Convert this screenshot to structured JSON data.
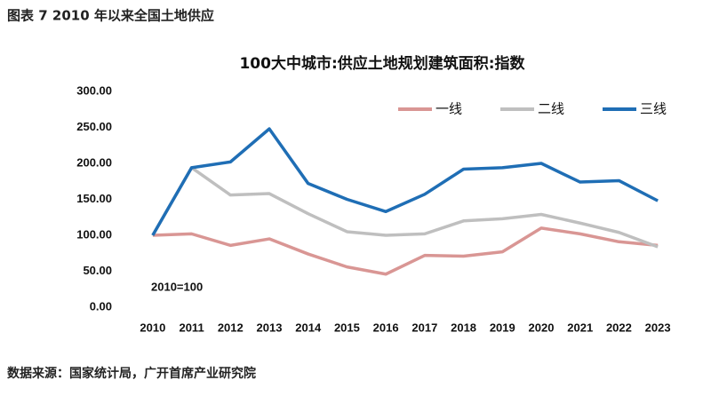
{
  "header": "图表 7 2010 年以来全国土地供应",
  "source": "数据来源：国家统计局，广开首席产业研究院",
  "chart_data": {
    "type": "line",
    "title": "100大中城市:供应土地规划建筑面积:指数",
    "annotation": "2010=100",
    "categories": [
      "2010",
      "2011",
      "2012",
      "2013",
      "2014",
      "2015",
      "2016",
      "2017",
      "2018",
      "2019",
      "2020",
      "2021",
      "2022",
      "2023"
    ],
    "series": [
      {
        "name": "一线",
        "color": "#d99694",
        "values": [
          100,
          102,
          86,
          95,
          74,
          56,
          46,
          72,
          71,
          77,
          110,
          102,
          91,
          86
        ]
      },
      {
        "name": "二线",
        "color": "#bfbfbf",
        "values": [
          100,
          194,
          156,
          158,
          130,
          105,
          100,
          102,
          120,
          123,
          129,
          117,
          104,
          84
        ]
      },
      {
        "name": "三线",
        "color": "#1f6eb5",
        "values": [
          100,
          194,
          202,
          248,
          172,
          150,
          133,
          157,
          192,
          194,
          200,
          174,
          176,
          148
        ]
      }
    ],
    "ylim": [
      0,
      300
    ],
    "yticks": [
      {
        "value": 0,
        "label": "0.00"
      },
      {
        "value": 50,
        "label": "50.00"
      },
      {
        "value": 100,
        "label": "100.00"
      },
      {
        "value": 150,
        "label": "150.00"
      },
      {
        "value": 200,
        "label": "200.00"
      },
      {
        "value": 250,
        "label": "250.00"
      },
      {
        "value": 300,
        "label": "300.00"
      }
    ],
    "legend": "top-right"
  }
}
